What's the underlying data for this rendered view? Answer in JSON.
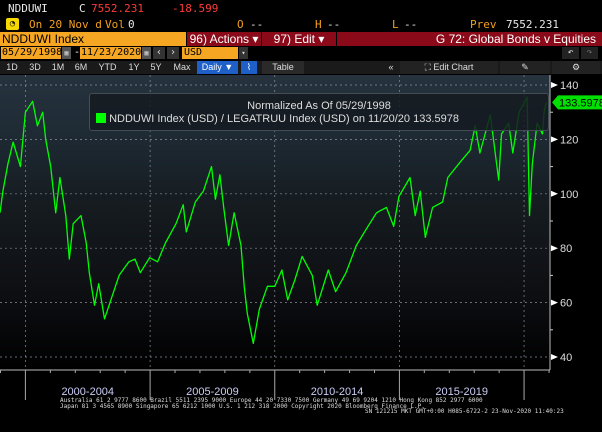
{
  "header": {
    "ticker": "NDDUWI",
    "close_label": "C",
    "close_value": "7552.231",
    "change": "-18.599",
    "date_text": "On 20 Nov d",
    "vol_label": "Vol",
    "vol_value": "0",
    "open_label": "O",
    "open_value": "--",
    "high_label": "H",
    "high_value": "--",
    "low_label": "L",
    "low_value": "--",
    "prev_label": "Prev",
    "prev_value": "7552.231"
  },
  "toolbar": {
    "security": "NDDUWI Index",
    "actions": "96) Actions ▾",
    "edit": "97) Edit ▾",
    "chart_title": "G 72: Global Bonds v Equities",
    "start_date": "05/29/1998",
    "end_date": "11/23/2020",
    "dash": "-",
    "currency": "USD",
    "periods": [
      "1D",
      "3D",
      "1M",
      "6M",
      "YTD",
      "1Y",
      "5Y",
      "Max"
    ],
    "frequency": "Daily ▼",
    "table": "Table",
    "collapse": "«",
    "edit_chart": "Edit Chart"
  },
  "colors": {
    "accent_orange": "#f5a623",
    "bar_red": "#8b0a1a",
    "series_green": "#00ff00",
    "selected_blue": "#1f5fc8"
  },
  "chart_data": {
    "type": "line",
    "title": "Normalized As Of 05/29/1998",
    "legend_label": "NDDUWI Index (USD) / LEGATRUU Index (USD) on 11/20/20 133.5978",
    "last_value": "133.5978",
    "ylim": [
      40,
      140
    ],
    "yticks": [
      "140",
      "120",
      "100",
      "80",
      "60",
      "40"
    ],
    "xlim": [
      "1998-12-25",
      "2021-01-15"
    ],
    "xtick_labels": [
      "2000-2004",
      "2005-2009",
      "2010-2014",
      "2015-2019"
    ],
    "grid": true,
    "legend_position": "top",
    "series": [
      {
        "name": "NDDUWI Index (USD) / LEGATRUU Index (USD)",
        "points": [
          [
            "1998-12-25",
            93
          ],
          [
            "1999-02-05",
            101
          ],
          [
            "1999-04-20",
            111
          ],
          [
            "1999-07-05",
            119
          ],
          [
            "1999-10-20",
            110
          ],
          [
            "2000-01-01",
            130
          ],
          [
            "2000-04-15",
            134
          ],
          [
            "2000-06-25",
            125
          ],
          [
            "2000-09-10",
            130
          ],
          [
            "2000-10-25",
            120
          ],
          [
            "2001-01-05",
            110
          ],
          [
            "2001-03-20",
            93
          ],
          [
            "2001-05-20",
            106
          ],
          [
            "2001-08-15",
            92
          ],
          [
            "2001-10-05",
            76
          ],
          [
            "2001-12-01",
            89
          ],
          [
            "2002-03-25",
            92
          ],
          [
            "2002-06-10",
            82
          ],
          [
            "2002-07-25",
            71
          ],
          [
            "2002-10-10",
            59
          ],
          [
            "2002-12-10",
            67
          ],
          [
            "2003-03-05",
            54
          ],
          [
            "2003-06-20",
            62
          ],
          [
            "2003-10-05",
            70
          ],
          [
            "2004-02-25",
            75
          ],
          [
            "2004-05-25",
            76
          ],
          [
            "2004-08-10",
            71
          ],
          [
            "2004-12-25",
            76.5
          ],
          [
            "2005-04-20",
            75
          ],
          [
            "2005-08-15",
            82
          ],
          [
            "2006-01-15",
            89
          ],
          [
            "2006-05-01",
            96
          ],
          [
            "2006-06-15",
            86
          ],
          [
            "2006-10-25",
            97
          ],
          [
            "2007-02-20",
            101
          ],
          [
            "2007-06-20",
            110
          ],
          [
            "2007-08-15",
            98
          ],
          [
            "2007-10-20",
            107
          ],
          [
            "2007-12-15",
            95
          ],
          [
            "2008-02-25",
            81
          ],
          [
            "2008-05-15",
            93
          ],
          [
            "2008-08-25",
            81
          ],
          [
            "2008-10-10",
            66
          ],
          [
            "2008-11-25",
            56
          ],
          [
            "2009-02-20",
            45
          ],
          [
            "2009-05-20",
            57.5
          ],
          [
            "2009-09-15",
            66
          ],
          [
            "2010-01-01",
            66
          ],
          [
            "2010-04-15",
            72
          ],
          [
            "2010-07-10",
            61
          ],
          [
            "2010-10-25",
            68.5
          ],
          [
            "2011-02-05",
            77
          ],
          [
            "2011-07-05",
            70
          ],
          [
            "2011-09-15",
            59
          ],
          [
            "2012-02-25",
            72
          ],
          [
            "2012-06-10",
            64
          ],
          [
            "2012-11-10",
            71
          ],
          [
            "2013-04-10",
            81
          ],
          [
            "2013-09-01",
            87
          ],
          [
            "2014-01-30",
            93
          ],
          [
            "2014-06-25",
            95
          ],
          [
            "2014-10-10",
            88
          ],
          [
            "2014-12-25",
            99
          ],
          [
            "2015-06-05",
            106
          ],
          [
            "2015-08-20",
            92
          ],
          [
            "2015-11-01",
            101
          ],
          [
            "2016-01-15",
            84
          ],
          [
            "2016-05-01",
            95
          ],
          [
            "2016-09-25",
            97
          ],
          [
            "2016-12-10",
            106
          ],
          [
            "2017-06-20",
            112
          ],
          [
            "2017-11-01",
            116
          ],
          [
            "2018-01-15",
            125
          ],
          [
            "2018-03-25",
            115
          ],
          [
            "2018-08-25",
            129
          ],
          [
            "2018-12-25",
            105
          ],
          [
            "2019-02-05",
            122
          ],
          [
            "2019-05-20",
            126
          ],
          [
            "2019-07-20",
            115
          ],
          [
            "2019-10-20",
            130
          ],
          [
            "2020-02-15",
            135.6
          ],
          [
            "2020-03-20",
            92
          ],
          [
            "2020-05-01",
            111
          ],
          [
            "2020-07-10",
            126
          ],
          [
            "2020-09-25",
            122
          ],
          [
            "2020-10-20",
            130
          ],
          [
            "2020-11-20",
            133.5978
          ]
        ]
      }
    ]
  },
  "footer": {
    "line1": "Australia 61 2 9777 8600 Brazil 5511 2395 9000 Europe 44 20 7330 7500 Germany 49 69 9204 1210 Hong Kong 852 2977 6000",
    "line2": "Japan 81 3 4565 8900      Singapore 65 6212 1000      U.S. 1 212 318 2000      Copyright 2020 Bloomberg Finance L.P.",
    "line3": "SN 121215 MKT  GMT+0:00 H085-6722-2 23-Nov-2020 11:40:23"
  }
}
